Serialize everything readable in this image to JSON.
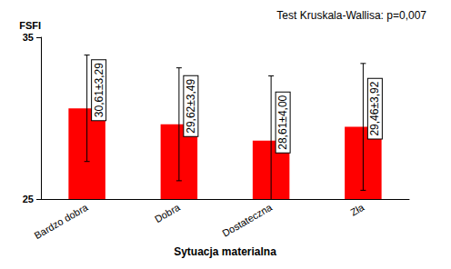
{
  "chart_data": {
    "type": "bar",
    "title": "Test Kruskala-Wallisa: p=0,007",
    "y_label": "FSFI",
    "x_label": "Sytuacja materialna",
    "categories": [
      "Bardzo dobra",
      "Dobra",
      "Dostateczna",
      "Zła"
    ],
    "values": [
      30.61,
      29.62,
      28.61,
      29.46
    ],
    "errors": [
      3.29,
      3.49,
      4.0,
      3.92
    ],
    "value_labels": [
      "30,61±3,29",
      "29,62±3,49",
      "28,61±4,00",
      "29,46±3,92"
    ],
    "color": "#ff0000",
    "ylim": [
      25,
      35
    ],
    "yticks": [
      25,
      35
    ],
    "grid": false,
    "data_labels": true
  }
}
